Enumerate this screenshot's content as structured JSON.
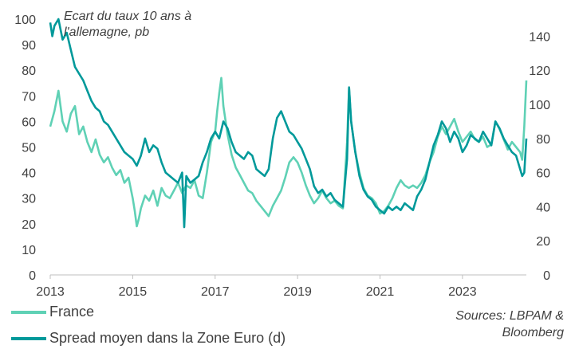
{
  "chart_data": {
    "type": "line",
    "title": "Ecart du taux 10 ans à l'allemagne, pb",
    "title_lines": [
      "Ecart du taux 10 ans à",
      "l'allemagne, pb"
    ],
    "x_ticks": [
      "2013",
      "2015",
      "2017",
      "2019",
      "2021",
      "2023"
    ],
    "x_range": [
      2013.0,
      2024.55
    ],
    "y_left": {
      "range": [
        0,
        100
      ],
      "ticks": [
        "0",
        "10",
        "20",
        "30",
        "40",
        "50",
        "60",
        "70",
        "80",
        "90",
        "100"
      ]
    },
    "y_right": {
      "range": [
        0,
        150
      ],
      "ticks": [
        "0",
        "20",
        "40",
        "60",
        "80",
        "100",
        "120",
        "140"
      ]
    },
    "series": [
      {
        "name": "France",
        "axis": "left",
        "color": "#5fd1b5",
        "points": [
          [
            2013.0,
            58
          ],
          [
            2013.1,
            64
          ],
          [
            2013.2,
            72
          ],
          [
            2013.3,
            60
          ],
          [
            2013.4,
            56
          ],
          [
            2013.5,
            63
          ],
          [
            2013.6,
            66
          ],
          [
            2013.7,
            55
          ],
          [
            2013.8,
            58
          ],
          [
            2013.9,
            52
          ],
          [
            2014.0,
            48
          ],
          [
            2014.1,
            53
          ],
          [
            2014.2,
            47
          ],
          [
            2014.3,
            44
          ],
          [
            2014.4,
            46
          ],
          [
            2014.5,
            42
          ],
          [
            2014.6,
            39
          ],
          [
            2014.7,
            41
          ],
          [
            2014.8,
            36
          ],
          [
            2014.9,
            38
          ],
          [
            2015.0,
            30
          ],
          [
            2015.05,
            25
          ],
          [
            2015.1,
            19
          ],
          [
            2015.15,
            22
          ],
          [
            2015.2,
            26
          ],
          [
            2015.3,
            31
          ],
          [
            2015.4,
            29
          ],
          [
            2015.5,
            33
          ],
          [
            2015.6,
            27
          ],
          [
            2015.7,
            34
          ],
          [
            2015.8,
            31
          ],
          [
            2015.9,
            30
          ],
          [
            2016.0,
            33
          ],
          [
            2016.1,
            36
          ],
          [
            2016.2,
            32
          ],
          [
            2016.3,
            35
          ],
          [
            2016.4,
            34
          ],
          [
            2016.5,
            37
          ],
          [
            2016.6,
            31
          ],
          [
            2016.7,
            30
          ],
          [
            2016.8,
            40
          ],
          [
            2016.9,
            52
          ],
          [
            2017.0,
            56
          ],
          [
            2017.05,
            64
          ],
          [
            2017.1,
            71
          ],
          [
            2017.15,
            77
          ],
          [
            2017.2,
            66
          ],
          [
            2017.3,
            55
          ],
          [
            2017.4,
            47
          ],
          [
            2017.5,
            42
          ],
          [
            2017.6,
            39
          ],
          [
            2017.7,
            36
          ],
          [
            2017.8,
            33
          ],
          [
            2017.9,
            32
          ],
          [
            2018.0,
            29
          ],
          [
            2018.1,
            27
          ],
          [
            2018.2,
            25
          ],
          [
            2018.3,
            23
          ],
          [
            2018.4,
            27
          ],
          [
            2018.5,
            30
          ],
          [
            2018.6,
            33
          ],
          [
            2018.7,
            38
          ],
          [
            2018.8,
            44
          ],
          [
            2018.9,
            46
          ],
          [
            2019.0,
            44
          ],
          [
            2019.1,
            40
          ],
          [
            2019.2,
            35
          ],
          [
            2019.3,
            31
          ],
          [
            2019.4,
            28
          ],
          [
            2019.5,
            30
          ],
          [
            2019.6,
            33
          ],
          [
            2019.7,
            30
          ],
          [
            2019.8,
            28
          ],
          [
            2019.9,
            29
          ],
          [
            2020.0,
            27
          ],
          [
            2020.1,
            26
          ],
          [
            2020.2,
            52
          ],
          [
            2020.25,
            73
          ],
          [
            2020.3,
            60
          ],
          [
            2020.4,
            48
          ],
          [
            2020.5,
            40
          ],
          [
            2020.6,
            34
          ],
          [
            2020.7,
            31
          ],
          [
            2020.8,
            30
          ],
          [
            2020.9,
            28
          ],
          [
            2021.0,
            24
          ],
          [
            2021.1,
            25
          ],
          [
            2021.2,
            27
          ],
          [
            2021.3,
            30
          ],
          [
            2021.4,
            34
          ],
          [
            2021.5,
            37
          ],
          [
            2021.6,
            35
          ],
          [
            2021.7,
            34
          ],
          [
            2021.8,
            35
          ],
          [
            2021.9,
            34
          ],
          [
            2022.0,
            36
          ],
          [
            2022.1,
            39
          ],
          [
            2022.2,
            44
          ],
          [
            2022.3,
            48
          ],
          [
            2022.4,
            54
          ],
          [
            2022.5,
            58
          ],
          [
            2022.6,
            55
          ],
          [
            2022.7,
            58
          ],
          [
            2022.8,
            61
          ],
          [
            2022.9,
            56
          ],
          [
            2023.0,
            52
          ],
          [
            2023.1,
            54
          ],
          [
            2023.2,
            56
          ],
          [
            2023.3,
            53
          ],
          [
            2023.4,
            52
          ],
          [
            2023.5,
            54
          ],
          [
            2023.6,
            50
          ],
          [
            2023.7,
            51
          ],
          [
            2023.8,
            60
          ],
          [
            2023.9,
            57
          ],
          [
            2024.0,
            53
          ],
          [
            2024.1,
            49
          ],
          [
            2024.2,
            52
          ],
          [
            2024.3,
            50
          ],
          [
            2024.4,
            48
          ],
          [
            2024.45,
            45
          ],
          [
            2024.5,
            58
          ],
          [
            2024.55,
            76
          ]
        ]
      },
      {
        "name": "Spread moyen dans la Zone Euro (d)",
        "axis": "right",
        "color": "#00999a",
        "points": [
          [
            2013.0,
            148
          ],
          [
            2013.05,
            140
          ],
          [
            2013.1,
            146
          ],
          [
            2013.2,
            150
          ],
          [
            2013.3,
            138
          ],
          [
            2013.4,
            142
          ],
          [
            2013.5,
            132
          ],
          [
            2013.6,
            122
          ],
          [
            2013.7,
            118
          ],
          [
            2013.8,
            114
          ],
          [
            2013.9,
            108
          ],
          [
            2014.0,
            102
          ],
          [
            2014.1,
            98
          ],
          [
            2014.2,
            96
          ],
          [
            2014.3,
            90
          ],
          [
            2014.4,
            88
          ],
          [
            2014.5,
            84
          ],
          [
            2014.6,
            80
          ],
          [
            2014.7,
            76
          ],
          [
            2014.8,
            72
          ],
          [
            2014.9,
            70
          ],
          [
            2015.0,
            68
          ],
          [
            2015.1,
            64
          ],
          [
            2015.2,
            70
          ],
          [
            2015.3,
            80
          ],
          [
            2015.4,
            72
          ],
          [
            2015.5,
            76
          ],
          [
            2015.6,
            74
          ],
          [
            2015.7,
            66
          ],
          [
            2015.8,
            60
          ],
          [
            2015.9,
            58
          ],
          [
            2016.0,
            56
          ],
          [
            2016.1,
            54
          ],
          [
            2016.2,
            60
          ],
          [
            2016.25,
            28
          ],
          [
            2016.3,
            58
          ],
          [
            2016.4,
            54
          ],
          [
            2016.5,
            56
          ],
          [
            2016.6,
            58
          ],
          [
            2016.7,
            66
          ],
          [
            2016.8,
            72
          ],
          [
            2016.9,
            80
          ],
          [
            2017.0,
            84
          ],
          [
            2017.1,
            80
          ],
          [
            2017.2,
            90
          ],
          [
            2017.3,
            86
          ],
          [
            2017.4,
            78
          ],
          [
            2017.5,
            72
          ],
          [
            2017.6,
            70
          ],
          [
            2017.7,
            68
          ],
          [
            2017.8,
            72
          ],
          [
            2017.9,
            70
          ],
          [
            2018.0,
            62
          ],
          [
            2018.1,
            60
          ],
          [
            2018.2,
            58
          ],
          [
            2018.3,
            62
          ],
          [
            2018.4,
            80
          ],
          [
            2018.5,
            92
          ],
          [
            2018.6,
            96
          ],
          [
            2018.7,
            90
          ],
          [
            2018.8,
            84
          ],
          [
            2018.9,
            82
          ],
          [
            2019.0,
            78
          ],
          [
            2019.1,
            74
          ],
          [
            2019.2,
            68
          ],
          [
            2019.3,
            62
          ],
          [
            2019.4,
            52
          ],
          [
            2019.5,
            48
          ],
          [
            2019.6,
            50
          ],
          [
            2019.7,
            46
          ],
          [
            2019.8,
            48
          ],
          [
            2019.9,
            44
          ],
          [
            2020.0,
            42
          ],
          [
            2020.1,
            40
          ],
          [
            2020.2,
            68
          ],
          [
            2020.25,
            110
          ],
          [
            2020.3,
            90
          ],
          [
            2020.4,
            72
          ],
          [
            2020.5,
            58
          ],
          [
            2020.6,
            50
          ],
          [
            2020.7,
            46
          ],
          [
            2020.8,
            44
          ],
          [
            2020.9,
            40
          ],
          [
            2021.0,
            38
          ],
          [
            2021.1,
            36
          ],
          [
            2021.2,
            40
          ],
          [
            2021.3,
            38
          ],
          [
            2021.4,
            40
          ],
          [
            2021.5,
            38
          ],
          [
            2021.6,
            42
          ],
          [
            2021.7,
            40
          ],
          [
            2021.8,
            38
          ],
          [
            2021.9,
            46
          ],
          [
            2022.0,
            50
          ],
          [
            2022.1,
            56
          ],
          [
            2022.2,
            66
          ],
          [
            2022.3,
            76
          ],
          [
            2022.4,
            82
          ],
          [
            2022.5,
            90
          ],
          [
            2022.6,
            86
          ],
          [
            2022.7,
            78
          ],
          [
            2022.8,
            84
          ],
          [
            2022.9,
            80
          ],
          [
            2023.0,
            72
          ],
          [
            2023.1,
            76
          ],
          [
            2023.2,
            82
          ],
          [
            2023.3,
            80
          ],
          [
            2023.4,
            78
          ],
          [
            2023.5,
            84
          ],
          [
            2023.6,
            80
          ],
          [
            2023.7,
            76
          ],
          [
            2023.8,
            90
          ],
          [
            2023.9,
            86
          ],
          [
            2024.0,
            80
          ],
          [
            2024.1,
            76
          ],
          [
            2024.2,
            72
          ],
          [
            2024.3,
            70
          ],
          [
            2024.4,
            62
          ],
          [
            2024.45,
            58
          ],
          [
            2024.5,
            60
          ],
          [
            2024.55,
            80
          ]
        ]
      }
    ],
    "legend": [
      {
        "label": "France",
        "color": "#5fd1b5"
      },
      {
        "label": "Spread moyen dans la Zone Euro (d)",
        "color": "#00999a"
      }
    ],
    "source_lines": [
      "Sources: LBPAM &",
      "Bloomberg"
    ]
  }
}
